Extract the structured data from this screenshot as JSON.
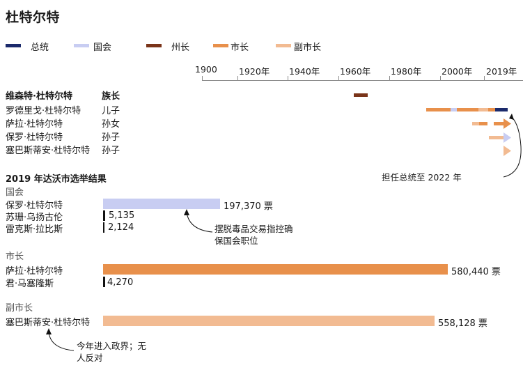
{
  "title": "杜特尔特",
  "colors": {
    "president": "#1b2a6b",
    "congress": "#c8cdf2",
    "governor": "#7a3419",
    "mayor": "#e8904b",
    "vice_mayor": "#f2bb92",
    "ink": "#111111"
  },
  "legend": [
    {
      "label": "总统",
      "color_key": "president"
    },
    {
      "label": "国会",
      "color_key": "congress"
    },
    {
      "label": "州长",
      "color_key": "governor"
    },
    {
      "label": "市长",
      "color_key": "mayor"
    },
    {
      "label": "副市长",
      "color_key": "vice_mayor"
    }
  ],
  "timeline": {
    "year_labels": [
      "1900",
      "1920年",
      "1940年",
      "1960年",
      "1980年",
      "2000年",
      "2019年"
    ],
    "col_header_name": "维森特·杜特尔特",
    "col_header_relation": "族长",
    "members": [
      {
        "name": "罗德里戈·杜特尔特",
        "relation": "儿子"
      },
      {
        "name": "萨拉·杜特尔特",
        "relation": "孙女"
      },
      {
        "name": "保罗·杜特尔特",
        "relation": "孙子"
      },
      {
        "name": "塞巴斯蒂安·杜特尔特",
        "relation": "孙子"
      }
    ],
    "annotation": "担任总统至 2022 年"
  },
  "chart_data": {
    "type": "bar",
    "title": "2019 年达沃市选举结果",
    "unit": "票",
    "races": [
      {
        "race": "国会",
        "candidates": [
          {
            "name": "保罗·杜特尔特",
            "votes": 197370,
            "label": "197,370 票",
            "color_key": "congress"
          },
          {
            "name": "苏珊·乌扬古伦",
            "votes": 5135,
            "label": "5,135",
            "color_key": "ink"
          },
          {
            "name": "雷克斯·拉比斯",
            "votes": 2124,
            "label": "2,124",
            "color_key": "ink"
          }
        ]
      },
      {
        "race": "市长",
        "candidates": [
          {
            "name": "萨拉·杜特尔特",
            "votes": 580440,
            "label": "580,440 票",
            "color_key": "mayor"
          },
          {
            "name": "君·马塞隆斯",
            "votes": 4270,
            "label": "4,270",
            "color_key": "ink"
          }
        ]
      },
      {
        "race": "副市长",
        "candidates": [
          {
            "name": "塞巴斯蒂安·杜特尔特",
            "votes": 558128,
            "label": "558,128 票",
            "color_key": "vice_mayor"
          }
        ]
      }
    ],
    "notes": {
      "congress": "摆脱毒品交易指控确保国会职位",
      "vice_mayor": "今年进入政界；无人反对"
    }
  }
}
